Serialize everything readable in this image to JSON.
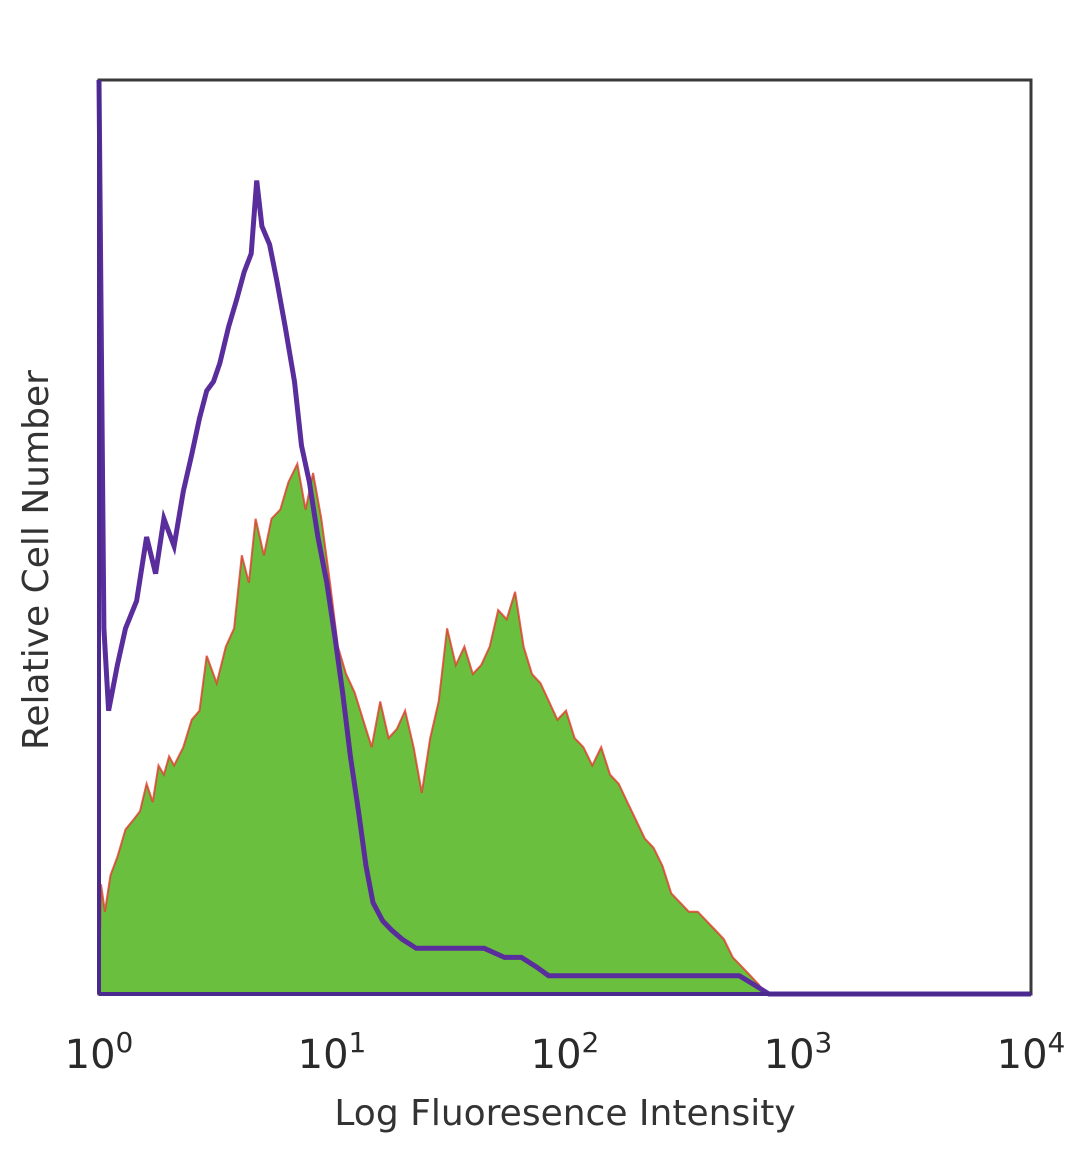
{
  "chart_data": {
    "type": "area",
    "title": "",
    "xlabel": "Log Fluoresence Intensity",
    "ylabel": "Relative Cell Number",
    "xscale": "log",
    "xlim": [
      1,
      10000
    ],
    "ylim": [
      0,
      100
    ],
    "x_tick_labels": [
      {
        "base": "10",
        "exp": "0",
        "value": 1
      },
      {
        "base": "10",
        "exp": "1",
        "value": 10
      },
      {
        "base": "10",
        "exp": "2",
        "value": 100
      },
      {
        "base": "10",
        "exp": "3",
        "value": 1000
      },
      {
        "base": "10",
        "exp": "4",
        "value": 10000
      }
    ],
    "y_ticks_shown": false,
    "grid": false,
    "legend": "none",
    "series": [
      {
        "style": "line",
        "color": "#5a2d9c",
        "points": [
          [
            1.0,
            100
          ],
          [
            1.05,
            40
          ],
          [
            1.1,
            31
          ],
          [
            1.2,
            36
          ],
          [
            1.3,
            40
          ],
          [
            1.45,
            43
          ],
          [
            1.6,
            50
          ],
          [
            1.75,
            46
          ],
          [
            1.9,
            52
          ],
          [
            2.1,
            49
          ],
          [
            2.3,
            55
          ],
          [
            2.5,
            59
          ],
          [
            2.7,
            63
          ],
          [
            2.9,
            66
          ],
          [
            3.1,
            67
          ],
          [
            3.3,
            69
          ],
          [
            3.6,
            73
          ],
          [
            3.9,
            76
          ],
          [
            4.2,
            79
          ],
          [
            4.5,
            81
          ],
          [
            4.75,
            89
          ],
          [
            5.0,
            84
          ],
          [
            5.4,
            82
          ],
          [
            5.8,
            78
          ],
          [
            6.3,
            73
          ],
          [
            6.9,
            67
          ],
          [
            7.4,
            60
          ],
          [
            8.0,
            56
          ],
          [
            8.7,
            50
          ],
          [
            9.5,
            45
          ],
          [
            10.3,
            39
          ],
          [
            11.1,
            33
          ],
          [
            12.0,
            26
          ],
          [
            13.0,
            20
          ],
          [
            14.0,
            14
          ],
          [
            15.0,
            10
          ],
          [
            16.5,
            8
          ],
          [
            18.0,
            7
          ],
          [
            20.0,
            6
          ],
          [
            23.0,
            5
          ],
          [
            27.0,
            5
          ],
          [
            32.0,
            5
          ],
          [
            38.0,
            5
          ],
          [
            45.0,
            5
          ],
          [
            55.0,
            4
          ],
          [
            65.0,
            4
          ],
          [
            75.0,
            3
          ],
          [
            85.0,
            2
          ],
          [
            100.0,
            2
          ],
          [
            130.0,
            2
          ],
          [
            170.0,
            2
          ],
          [
            220.0,
            2
          ],
          [
            300.0,
            2
          ],
          [
            380.0,
            2
          ],
          [
            470.0,
            2
          ],
          [
            560.0,
            2
          ],
          [
            650.0,
            1
          ],
          [
            750.0,
            0
          ],
          [
            1000.0,
            0
          ],
          [
            10000.0,
            0
          ]
        ]
      },
      {
        "style": "area",
        "color": "#6bbf3e",
        "edge_color": "#e03a2a",
        "points": [
          [
            1.0,
            0
          ],
          [
            1.02,
            12
          ],
          [
            1.06,
            9
          ],
          [
            1.12,
            13
          ],
          [
            1.2,
            15
          ],
          [
            1.3,
            18
          ],
          [
            1.4,
            19
          ],
          [
            1.5,
            20
          ],
          [
            1.6,
            23
          ],
          [
            1.7,
            21
          ],
          [
            1.8,
            25
          ],
          [
            1.9,
            24
          ],
          [
            2.0,
            26
          ],
          [
            2.1,
            25
          ],
          [
            2.3,
            27
          ],
          [
            2.5,
            30
          ],
          [
            2.7,
            31
          ],
          [
            2.9,
            37
          ],
          [
            3.2,
            34
          ],
          [
            3.5,
            38
          ],
          [
            3.8,
            40
          ],
          [
            4.1,
            48
          ],
          [
            4.4,
            45
          ],
          [
            4.7,
            52
          ],
          [
            5.1,
            48
          ],
          [
            5.5,
            52
          ],
          [
            6.0,
            53
          ],
          [
            6.5,
            56
          ],
          [
            7.1,
            58
          ],
          [
            7.7,
            53
          ],
          [
            8.3,
            57
          ],
          [
            9.0,
            52
          ],
          [
            9.8,
            45
          ],
          [
            10.6,
            38
          ],
          [
            11.5,
            35
          ],
          [
            12.5,
            33
          ],
          [
            13.6,
            30
          ],
          [
            14.8,
            27
          ],
          [
            16.1,
            32
          ],
          [
            17.5,
            28
          ],
          [
            19.0,
            29
          ],
          [
            20.6,
            31
          ],
          [
            22.4,
            27
          ],
          [
            24.3,
            22
          ],
          [
            26.4,
            28
          ],
          [
            28.7,
            32
          ],
          [
            31.2,
            40
          ],
          [
            34.0,
            36
          ],
          [
            37.0,
            38
          ],
          [
            40.2,
            35
          ],
          [
            43.7,
            36
          ],
          [
            47.5,
            38
          ],
          [
            51.7,
            42
          ],
          [
            56.2,
            41
          ],
          [
            61.1,
            44
          ],
          [
            66.4,
            38
          ],
          [
            72.2,
            35
          ],
          [
            78.5,
            34
          ],
          [
            85.4,
            32
          ],
          [
            92.8,
            30
          ],
          [
            101.0,
            31
          ],
          [
            110.0,
            28
          ],
          [
            120.0,
            27
          ],
          [
            131.0,
            25
          ],
          [
            143.0,
            27
          ],
          [
            156.0,
            24
          ],
          [
            170.0,
            23
          ],
          [
            185.0,
            21
          ],
          [
            202.0,
            19
          ],
          [
            220.0,
            17
          ],
          [
            240.0,
            16
          ],
          [
            262.0,
            14
          ],
          [
            286.0,
            11
          ],
          [
            312.0,
            10
          ],
          [
            340.0,
            9
          ],
          [
            371.0,
            9
          ],
          [
            405.0,
            8
          ],
          [
            441.0,
            7
          ],
          [
            481.0,
            6
          ],
          [
            525.0,
            4
          ],
          [
            573.0,
            3
          ],
          [
            625.0,
            2
          ],
          [
            680.0,
            1
          ],
          [
            720.0,
            0
          ],
          [
            10000.0,
            0
          ]
        ]
      }
    ]
  }
}
